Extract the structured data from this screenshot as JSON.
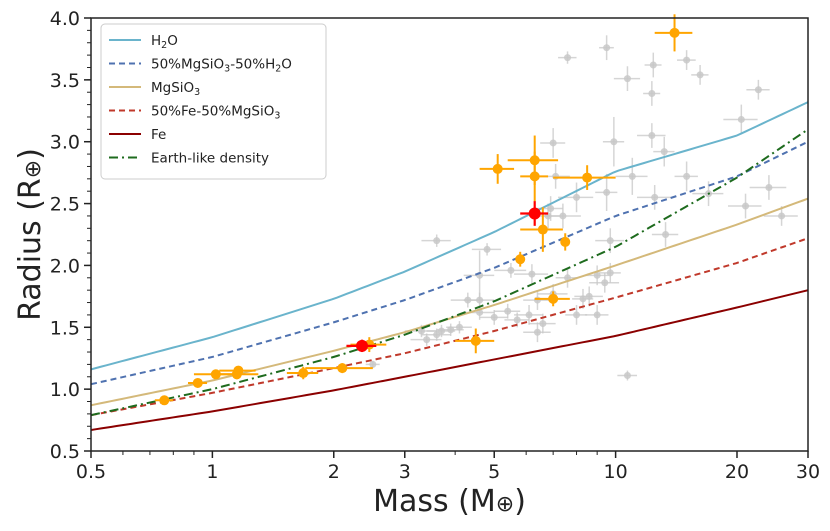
{
  "chart_data": {
    "type": "scatter",
    "xlabel": "Mass (M⊕)",
    "ylabel": "Radius (R⊕)",
    "xlabel_parts": {
      "main": "Mass (M",
      "sym": "⊕",
      "end": ")"
    },
    "ylabel_parts": {
      "main": "Radius (R",
      "sym": "⊕",
      "end": ")"
    },
    "xscale": "log",
    "xlim": [
      0.5,
      30
    ],
    "ylim": [
      0.5,
      4.0
    ],
    "xticks": [
      0.5,
      1,
      2,
      3,
      5,
      10,
      20,
      30
    ],
    "xtick_labels": [
      "0.5",
      "1",
      "2",
      "3",
      "5",
      "10",
      "20",
      "30"
    ],
    "yticks": [
      0.5,
      1.0,
      1.5,
      2.0,
      2.5,
      3.0,
      3.5,
      4.0
    ],
    "ytick_labels": [
      "0.5",
      "1.0",
      "1.5",
      "2.0",
      "2.5",
      "3.0",
      "3.5",
      "4.0"
    ],
    "legend_position": "top-left",
    "series": [
      {
        "name": "H2O",
        "label": [
          [
            "H",
            false
          ],
          [
            "2",
            true
          ],
          [
            "O",
            false
          ]
        ],
        "color": "#6ab4cc",
        "dash": "",
        "width": 2,
        "x": [
          0.5,
          1,
          2,
          3,
          5,
          10,
          20,
          30
        ],
        "y": [
          1.16,
          1.42,
          1.73,
          1.95,
          2.27,
          2.76,
          3.05,
          3.32
        ]
      },
      {
        "name": "50%MgSiO3-50%H2O",
        "label": [
          [
            "50%MgSiO",
            false
          ],
          [
            "3",
            true
          ],
          [
            "-50%H",
            false
          ],
          [
            "2",
            true
          ],
          [
            "O",
            false
          ]
        ],
        "color": "#4f72b0",
        "dash": "6,4",
        "width": 2,
        "x": [
          0.5,
          1,
          2,
          3,
          5,
          10,
          20,
          30
        ],
        "y": [
          1.04,
          1.26,
          1.54,
          1.72,
          1.98,
          2.4,
          2.72,
          3.0
        ]
      },
      {
        "name": "MgSiO3",
        "label": [
          [
            "MgSiO",
            false
          ],
          [
            "3",
            true
          ]
        ],
        "color": "#d4b97a",
        "dash": "",
        "width": 2,
        "x": [
          0.5,
          1,
          2,
          3,
          5,
          10,
          20,
          30
        ],
        "y": [
          0.87,
          1.07,
          1.31,
          1.46,
          1.68,
          2.0,
          2.33,
          2.54
        ]
      },
      {
        "name": "50%Fe-50%MgSiO3",
        "label": [
          [
            "50%Fe-50%MgSiO",
            false
          ],
          [
            "3",
            true
          ]
        ],
        "color": "#c0392b",
        "dash": "6,4",
        "width": 2,
        "x": [
          0.5,
          1,
          2,
          3,
          5,
          10,
          20,
          30
        ],
        "y": [
          0.79,
          0.97,
          1.17,
          1.29,
          1.47,
          1.74,
          2.02,
          2.22
        ]
      },
      {
        "name": "Fe",
        "label": [
          [
            "Fe",
            false
          ]
        ],
        "color": "#8b0000",
        "dash": "",
        "width": 2,
        "x": [
          0.5,
          1,
          2,
          3,
          5,
          10,
          20,
          30
        ],
        "y": [
          0.67,
          0.82,
          0.99,
          1.1,
          1.24,
          1.43,
          1.66,
          1.8
        ]
      },
      {
        "name": "Earth-like density",
        "label": [
          [
            "Earth-like density",
            false
          ]
        ],
        "color": "#1e6b1e",
        "dash": "9,4,2,4",
        "width": 2,
        "x": [
          0.5,
          1,
          2,
          3,
          5,
          10,
          20,
          30
        ],
        "y": [
          0.79,
          1.0,
          1.26,
          1.44,
          1.71,
          2.15,
          2.71,
          3.1
        ]
      }
    ],
    "background_planets": [
      {
        "x": 3.6,
        "y": 2.2,
        "xe": 0.3,
        "ye": 0.05
      },
      {
        "x": 4.8,
        "y": 2.13,
        "xe": 0.4,
        "ye": 0.05
      },
      {
        "x": 5.5,
        "y": 1.96,
        "xe": 0.5,
        "ye": 0.06
      },
      {
        "x": 6.2,
        "y": 1.93,
        "xe": 0.6,
        "ye": 0.08
      },
      {
        "x": 6.8,
        "y": 2.4,
        "xe": 0.5,
        "ye": 0.1
      },
      {
        "x": 7.4,
        "y": 2.4,
        "xe": 0.8,
        "ye": 0.1
      },
      {
        "x": 7.0,
        "y": 2.99,
        "xe": 0.5,
        "ye": 0.12
      },
      {
        "x": 9.9,
        "y": 3.0,
        "xe": 0.6,
        "ye": 0.2
      },
      {
        "x": 9.5,
        "y": 2.59,
        "xe": 0.6,
        "ye": 0.15
      },
      {
        "x": 9.7,
        "y": 2.2,
        "xe": 0.8,
        "ye": 0.1
      },
      {
        "x": 9.4,
        "y": 1.86,
        "xe": 0.8,
        "ye": 0.08
      },
      {
        "x": 9.0,
        "y": 1.92,
        "xe": 0.6,
        "ye": 0.08
      },
      {
        "x": 8.6,
        "y": 1.75,
        "xe": 0.7,
        "ye": 0.08
      },
      {
        "x": 9.0,
        "y": 1.6,
        "xe": 0.6,
        "ye": 0.08
      },
      {
        "x": 8.0,
        "y": 1.6,
        "xe": 0.5,
        "ye": 0.08
      },
      {
        "x": 7.6,
        "y": 1.9,
        "xe": 0.5,
        "ye": 0.08
      },
      {
        "x": 7.0,
        "y": 1.77,
        "xe": 0.6,
        "ye": 0.08
      },
      {
        "x": 6.4,
        "y": 1.72,
        "xe": 0.5,
        "ye": 0.08
      },
      {
        "x": 6.1,
        "y": 1.6,
        "xe": 0.5,
        "ye": 0.08
      },
      {
        "x": 6.6,
        "y": 1.53,
        "xe": 0.5,
        "ye": 0.08
      },
      {
        "x": 6.4,
        "y": 1.46,
        "xe": 0.5,
        "ye": 0.08
      },
      {
        "x": 5.7,
        "y": 1.56,
        "xe": 0.4,
        "ye": 0.06
      },
      {
        "x": 5.4,
        "y": 1.63,
        "xe": 0.4,
        "ye": 0.06
      },
      {
        "x": 5.0,
        "y": 1.58,
        "xe": 0.4,
        "ye": 0.06
      },
      {
        "x": 4.6,
        "y": 1.62,
        "xe": 0.4,
        "ye": 0.06
      },
      {
        "x": 4.6,
        "y": 1.72,
        "xe": 0.4,
        "ye": 0.06
      },
      {
        "x": 4.3,
        "y": 1.72,
        "xe": 0.4,
        "ye": 0.06
      },
      {
        "x": 4.6,
        "y": 1.92,
        "xe": 0.4,
        "ye": 0.2
      },
      {
        "x": 4.1,
        "y": 1.5,
        "xe": 0.3,
        "ye": 0.05
      },
      {
        "x": 3.9,
        "y": 1.48,
        "xe": 0.3,
        "ye": 0.05
      },
      {
        "x": 3.7,
        "y": 1.47,
        "xe": 0.3,
        "ye": 0.05
      },
      {
        "x": 3.6,
        "y": 1.44,
        "xe": 0.3,
        "ye": 0.05
      },
      {
        "x": 3.3,
        "y": 1.47,
        "xe": 0.3,
        "ye": 0.05
      },
      {
        "x": 3.4,
        "y": 1.4,
        "xe": 0.3,
        "ye": 0.05
      },
      {
        "x": 2.5,
        "y": 1.2,
        "xe": 0.1,
        "ye": 0.03
      },
      {
        "x": 6.9,
        "y": 2.46,
        "xe": 0.5,
        "ye": 0.1
      },
      {
        "x": 7.1,
        "y": 2.72,
        "xe": 0.6,
        "ye": 0.1
      },
      {
        "x": 8.3,
        "y": 1.73,
        "xe": 0.5,
        "ye": 0.08
      },
      {
        "x": 9.7,
        "y": 1.94,
        "xe": 0.6,
        "ye": 0.08
      },
      {
        "x": 10.7,
        "y": 1.11,
        "xe": 0.6,
        "ye": 0.04
      },
      {
        "x": 9.5,
        "y": 3.76,
        "xe": 0.4,
        "ye": 0.1
      },
      {
        "x": 7.6,
        "y": 3.68,
        "xe": 0.4,
        "ye": 0.05
      },
      {
        "x": 10.7,
        "y": 3.51,
        "xe": 0.8,
        "ye": 0.1
      },
      {
        "x": 12.3,
        "y": 3.39,
        "xe": 0.6,
        "ye": 0.1
      },
      {
        "x": 12.4,
        "y": 3.62,
        "xe": 0.6,
        "ye": 0.1
      },
      {
        "x": 15.0,
        "y": 3.66,
        "xe": 0.8,
        "ye": 0.08
      },
      {
        "x": 16.2,
        "y": 3.54,
        "xe": 0.8,
        "ye": 0.08
      },
      {
        "x": 12.3,
        "y": 3.05,
        "xe": 1.0,
        "ye": 0.1
      },
      {
        "x": 13.2,
        "y": 2.92,
        "xe": 0.8,
        "ye": 0.12
      },
      {
        "x": 15.0,
        "y": 2.72,
        "xe": 1.0,
        "ye": 0.12
      },
      {
        "x": 12.5,
        "y": 2.55,
        "xe": 1.2,
        "ye": 0.1
      },
      {
        "x": 13.3,
        "y": 2.25,
        "xe": 1.0,
        "ye": 0.1
      },
      {
        "x": 17.0,
        "y": 2.58,
        "xe": 1.5,
        "ye": 0.1
      },
      {
        "x": 20.5,
        "y": 3.18,
        "xe": 2.0,
        "ye": 0.12
      },
      {
        "x": 21.0,
        "y": 2.48,
        "xe": 2.0,
        "ye": 0.1
      },
      {
        "x": 22.6,
        "y": 3.42,
        "xe": 1.5,
        "ye": 0.08
      },
      {
        "x": 24.0,
        "y": 2.63,
        "xe": 2.5,
        "ye": 0.1
      },
      {
        "x": 25.8,
        "y": 2.4,
        "xe": 2.5,
        "ye": 0.08
      },
      {
        "x": 11.0,
        "y": 2.72,
        "xe": 1.0,
        "ye": 0.15
      },
      {
        "x": 8.0,
        "y": 2.55,
        "xe": 0.8,
        "ye": 0.12
      }
    ],
    "highlighted_planets": [
      {
        "x": 0.76,
        "y": 0.91,
        "xe": 0.04,
        "ye": 0.03
      },
      {
        "x": 0.92,
        "y": 1.05,
        "xe": 0.05,
        "ye": 0.03
      },
      {
        "x": 1.02,
        "y": 1.12,
        "xe": 0.12,
        "ye": 0.03
      },
      {
        "x": 1.15,
        "y": 1.12,
        "xe": 0.15,
        "ye": 0.04
      },
      {
        "x": 1.16,
        "y": 1.15,
        "xe": 0.12,
        "ye": 0.03
      },
      {
        "x": 1.68,
        "y": 1.13,
        "xe": 0.15,
        "ye": 0.05
      },
      {
        "x": 2.1,
        "y": 1.17,
        "xe": 0.4,
        "ye": 0.04
      },
      {
        "x": 2.45,
        "y": 1.36,
        "xe": 0.25,
        "ye": 0.06
      },
      {
        "x": 4.5,
        "y": 1.39,
        "xe": 0.5,
        "ye": 0.1
      },
      {
        "x": 5.1,
        "y": 2.78,
        "xe": 0.5,
        "ye": 0.12
      },
      {
        "x": 5.8,
        "y": 2.05,
        "xe": 0.15,
        "ye": 0.06
      },
      {
        "x": 6.3,
        "y": 2.72,
        "xe": 0.5,
        "ye": 0.2
      },
      {
        "x": 6.3,
        "y": 2.85,
        "xe": 0.9,
        "ye": 0.2
      },
      {
        "x": 6.6,
        "y": 2.29,
        "xe": 0.8,
        "ye": 0.18
      },
      {
        "x": 7.0,
        "y": 1.73,
        "xe": 0.7,
        "ye": 0.06
      },
      {
        "x": 7.5,
        "y": 2.19,
        "xe": 0.2,
        "ye": 0.07
      },
      {
        "x": 8.5,
        "y": 2.71,
        "xe": 1.5,
        "ye": 0.1
      },
      {
        "x": 14.0,
        "y": 3.88,
        "xe": 1.5,
        "ye": 0.15
      }
    ],
    "red_planets": [
      {
        "x": 2.35,
        "y": 1.35,
        "xe": 0.2,
        "ye": 0.05
      },
      {
        "x": 6.3,
        "y": 2.42,
        "xe": 0.5,
        "ye": 0.1
      }
    ],
    "colors": {
      "highlighted": "#ffa500",
      "red": "#ff0000",
      "background": "#c8c8c8",
      "axis": "#222222"
    }
  }
}
